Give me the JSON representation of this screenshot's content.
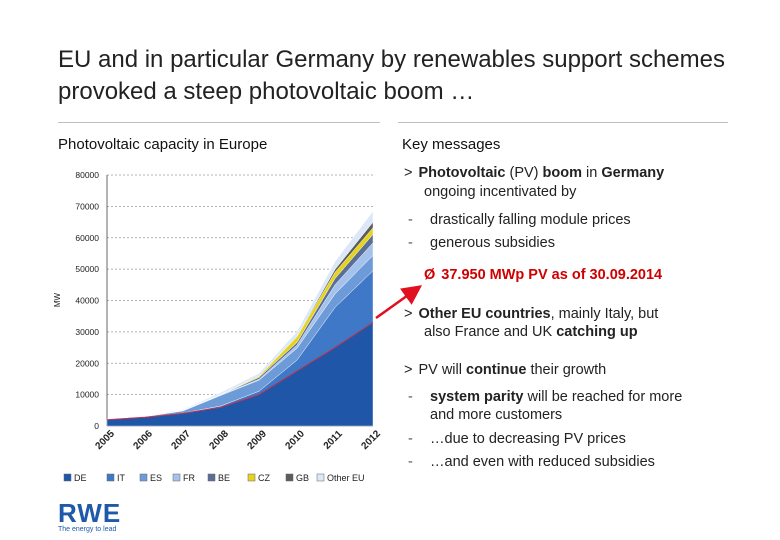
{
  "title": "EU and in particular Germany by renewables support schemes provoked a steep  photovoltaic boom …",
  "left_heading": "Photovoltaic capacity in Europe",
  "right_heading": "Key messages",
  "messages": {
    "m1_marker": ">",
    "m1_a": "Photovoltaic",
    "m1_b": " (PV) ",
    "m1_c": "boom",
    "m1_d": " in ",
    "m1_e": "Germany",
    "m1_line2": "ongoing incentivated by",
    "m1_sub1": "drastically falling module prices",
    "m1_sub2": "generous subsidies",
    "dash": "-",
    "highlight_marker": "Ø",
    "highlight": "37.950 MWp PV as of 30.09.2014",
    "m2_marker": ">",
    "m2_a": "Other EU countries",
    "m2_b": ", mainly Italy, but",
    "m2_c": "also France and UK ",
    "m2_d": "catching up",
    "m3_marker": ">",
    "m3_a": "PV will ",
    "m3_b": "continue",
    "m3_c": " their growth",
    "m3_sub1_a": "system parity",
    "m3_sub1_b": " will be reached for more",
    "m3_sub1_c": "and more customers",
    "m3_sub2": "…due to decreasing PV prices",
    "m3_sub3": "…and even with reduced subsidies"
  },
  "colors": {
    "DE": "#1f56a8",
    "IT": "#3f78c7",
    "ES": "#6d9bd8",
    "FR": "#a5c2ec",
    "BE": "#5b6f96",
    "CZ": "#e6d31c",
    "GB": "#5c5c5c",
    "Other EU": "#dce7f7",
    "DE_line": "#c0304a",
    "arrow": "#e01020"
  },
  "chart_data": {
    "type": "area",
    "stacked": true,
    "ylabel": "MW",
    "ylim": [
      0,
      80000
    ],
    "yticks": [
      "0",
      "10000",
      "20000",
      "30000",
      "40000",
      "50000",
      "60000",
      "70000",
      "80000"
    ],
    "x": [
      "2005",
      "2006",
      "2007",
      "2008",
      "2009",
      "2010",
      "2011",
      "2012"
    ],
    "grid": true,
    "legend_position": "bottom",
    "series": [
      {
        "name": "DE",
        "values": [
          2000,
          2800,
          4000,
          6000,
          10000,
          17500,
          25000,
          33000
        ]
      },
      {
        "name": "IT",
        "values": [
          30,
          50,
          100,
          400,
          1100,
          3500,
          12800,
          16500
        ]
      },
      {
        "name": "ES",
        "values": [
          50,
          150,
          700,
          3400,
          3500,
          3800,
          4300,
          4900
        ]
      },
      {
        "name": "FR",
        "values": [
          30,
          50,
          80,
          180,
          330,
          1000,
          2900,
          4000
        ]
      },
      {
        "name": "BE",
        "values": [
          10,
          20,
          30,
          70,
          550,
          800,
          2000,
          2700
        ]
      },
      {
        "name": "CZ",
        "values": [
          0,
          10,
          20,
          50,
          400,
          1900,
          2000,
          2100
        ]
      },
      {
        "name": "GB",
        "values": [
          10,
          20,
          20,
          20,
          30,
          80,
          900,
          1800
        ]
      },
      {
        "name": "Other EU",
        "values": [
          100,
          150,
          250,
          600,
          900,
          1500,
          2500,
          3500
        ]
      }
    ]
  }
}
